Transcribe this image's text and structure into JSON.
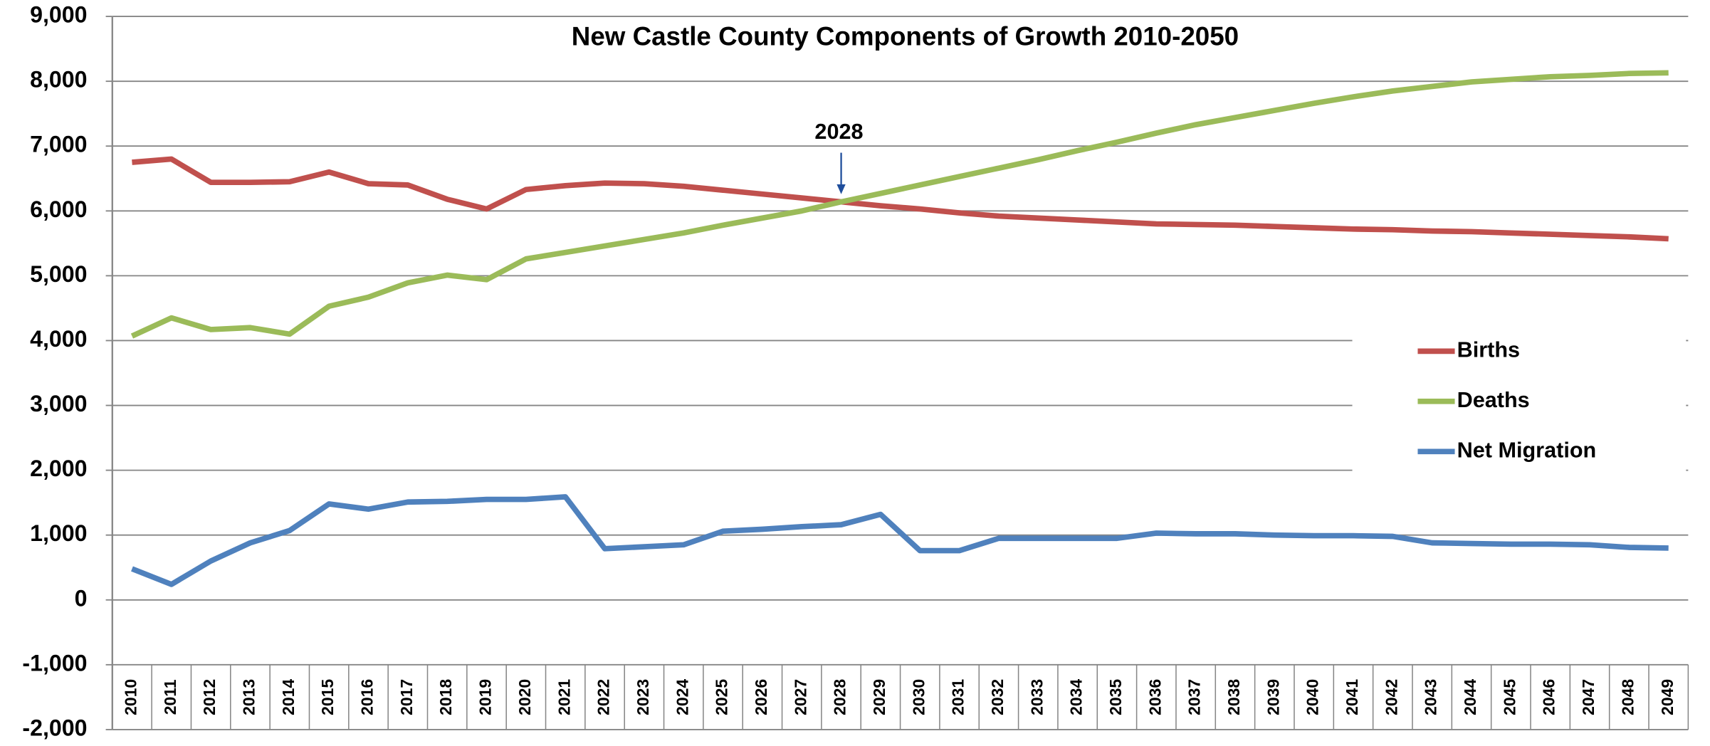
{
  "chart_data": {
    "type": "line",
    "title": "New Castle County Components of Growth 2010-2050",
    "categories": [
      "2010",
      "2011",
      "2012",
      "2013",
      "2014",
      "2015",
      "2016",
      "2017",
      "2018",
      "2019",
      "2020",
      "2021",
      "2022",
      "2023",
      "2024",
      "2025",
      "2026",
      "2027",
      "2028",
      "2029",
      "2030",
      "2031",
      "2032",
      "2033",
      "2034",
      "2035",
      "2036",
      "2037",
      "2038",
      "2039",
      "2040",
      "2041",
      "2042",
      "2043",
      "2044",
      "2045",
      "2046",
      "2047",
      "2048",
      "2049"
    ],
    "series": [
      {
        "name": "Births",
        "color": "#c0504d",
        "values": [
          6750,
          6800,
          6440,
          6440,
          6450,
          6600,
          6420,
          6400,
          6180,
          6030,
          6330,
          6390,
          6430,
          6420,
          6380,
          6320,
          6260,
          6200,
          6140,
          6080,
          6030,
          5970,
          5920,
          5890,
          5860,
          5830,
          5800,
          5790,
          5780,
          5760,
          5740,
          5720,
          5710,
          5690,
          5680,
          5660,
          5640,
          5620,
          5600,
          5570
        ]
      },
      {
        "name": "Deaths",
        "color": "#9bbb59",
        "values": [
          4070,
          4350,
          4170,
          4200,
          4100,
          4530,
          4670,
          4890,
          5010,
          4940,
          5260,
          5360,
          5460,
          5560,
          5660,
          5780,
          5890,
          6000,
          6140,
          6270,
          6400,
          6530,
          6660,
          6790,
          6930,
          7060,
          7200,
          7330,
          7440,
          7550,
          7660,
          7760,
          7850,
          7920,
          7990,
          8030,
          8070,
          8090,
          8120,
          8130
        ]
      },
      {
        "name": "Net Migration",
        "color": "#4f81bd",
        "values": [
          480,
          240,
          600,
          880,
          1070,
          1480,
          1400,
          1510,
          1520,
          1550,
          1550,
          1590,
          790,
          820,
          850,
          1060,
          1090,
          1130,
          1160,
          1320,
          760,
          760,
          950,
          950,
          950,
          950,
          1030,
          1020,
          1020,
          1000,
          990,
          990,
          980,
          880,
          870,
          860,
          860,
          850,
          810,
          800
        ]
      }
    ],
    "annotation": "2028",
    "ylim": [
      -2000,
      9000
    ],
    "yticks": [
      {
        "value": -2000,
        "label": "-2,000"
      },
      {
        "value": -1000,
        "label": "-1,000"
      },
      0,
      {
        "value": 1000,
        "label": "1,000"
      },
      {
        "value": 2000,
        "label": "2,000"
      },
      {
        "value": 3000,
        "label": "3,000"
      },
      {
        "value": 4000,
        "label": "4,000"
      },
      {
        "value": 5000,
        "label": "5,000"
      },
      {
        "value": 6000,
        "label": "6,000"
      },
      {
        "value": 7000,
        "label": "7,000"
      },
      {
        "value": 8000,
        "label": "8,000"
      },
      {
        "value": 9000,
        "label": "9,000"
      }
    ],
    "grid": true,
    "legend": "right"
  }
}
